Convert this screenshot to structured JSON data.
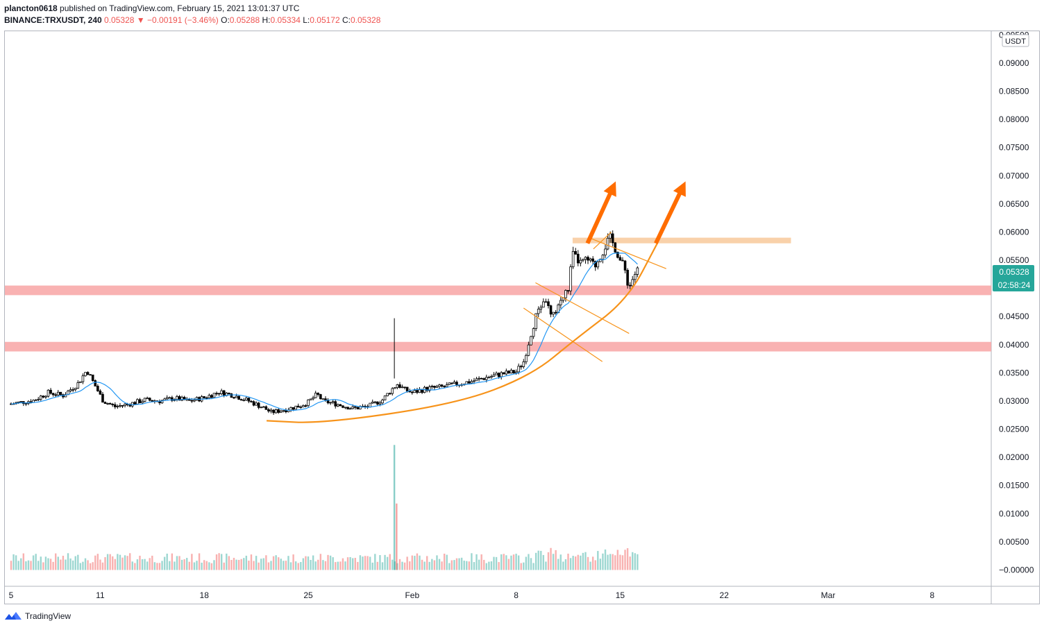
{
  "header": {
    "publisher": "plancton0618",
    "published_text": "published on TradingView.com, February 15, 2021 13:01:37 UTC",
    "symbol": "BINANCE:TRXUSDT, 240",
    "last": "0.05328",
    "arrow": "▼",
    "change": "−0.00191 (−3.46%)",
    "o_label": "O:",
    "o_value": "0.05288",
    "h_label": "H:",
    "h_value": "0.05334",
    "l_label": "L:",
    "l_value": "0.05172",
    "c_label": "C:",
    "c_value": "0.05328"
  },
  "price_axis": {
    "currency": "USDT",
    "current_price": "0.05328",
    "countdown": "02:58:24",
    "top_label_partial": "0.09500"
  },
  "footer": {
    "brand": "TradingView",
    "brand_icon": "tradingview-logo-icon"
  },
  "colors": {
    "up": "#26a69a",
    "down": "#ef5350",
    "candle": "#000000",
    "ma": "#2196f3",
    "drawing": "#f7931a",
    "arrow": "#ff6d00",
    "zone_red": "#f8a5a5",
    "zone_orange": "#f8c99b",
    "badge": "#26a69a"
  },
  "chart_data": {
    "type": "candlestick",
    "symbol": "BINANCE:TRXUSDT",
    "interval": "240",
    "ylim": [
      0,
      0.1
    ],
    "xlim": [
      "2021-01-05",
      "2021-03-11"
    ],
    "y_ticks": [
      "0.09000",
      "0.08500",
      "0.08000",
      "0.07500",
      "0.07000",
      "0.06500",
      "0.06000",
      "0.05500",
      "0.05000",
      "0.04500",
      "0.04000",
      "0.03500",
      "0.03000",
      "0.02500",
      "0.02000",
      "0.01500",
      "0.01000",
      "0.00500",
      "−0.00000"
    ],
    "y_tick_values": [
      0.09,
      0.085,
      0.08,
      0.075,
      0.07,
      0.065,
      0.06,
      0.055,
      0.05,
      0.045,
      0.04,
      0.035,
      0.03,
      0.025,
      0.02,
      0.015,
      0.01,
      0.005,
      0
    ],
    "x_ticks": [
      {
        "label": "5",
        "date": "2021-01-05"
      },
      {
        "label": "11",
        "date": "2021-01-11"
      },
      {
        "label": "18",
        "date": "2021-01-18"
      },
      {
        "label": "25",
        "date": "2021-01-25"
      },
      {
        "label": "Feb",
        "date": "2021-02-01"
      },
      {
        "label": "8",
        "date": "2021-02-08"
      },
      {
        "label": "15",
        "date": "2021-02-15"
      },
      {
        "label": "22",
        "date": "2021-02-22"
      },
      {
        "label": "Mar",
        "date": "2021-03-01"
      },
      {
        "label": "8",
        "date": "2021-03-08"
      }
    ],
    "start_date": "2021-01-05",
    "last_price": 0.05328,
    "close_path": [
      {
        "d": 0,
        "p": 0.0295
      },
      {
        "d": 1.5,
        "p": 0.0301
      },
      {
        "d": 2.5,
        "p": 0.0315
      },
      {
        "d": 3.5,
        "p": 0.031
      },
      {
        "d": 4.5,
        "p": 0.0331
      },
      {
        "d": 5.1,
        "p": 0.0355
      },
      {
        "d": 5.6,
        "p": 0.033
      },
      {
        "d": 6.2,
        "p": 0.03
      },
      {
        "d": 7,
        "p": 0.029
      },
      {
        "d": 8,
        "p": 0.0295
      },
      {
        "d": 9,
        "p": 0.0302
      },
      {
        "d": 10,
        "p": 0.03
      },
      {
        "d": 11,
        "p": 0.0305
      },
      {
        "d": 12,
        "p": 0.03
      },
      {
        "d": 13,
        "p": 0.0306
      },
      {
        "d": 14,
        "p": 0.0316
      },
      {
        "d": 15,
        "p": 0.031
      },
      {
        "d": 16,
        "p": 0.03
      },
      {
        "d": 17,
        "p": 0.0288
      },
      {
        "d": 17.5,
        "p": 0.028
      },
      {
        "d": 18.5,
        "p": 0.0285
      },
      {
        "d": 19.5,
        "p": 0.0292
      },
      {
        "d": 20,
        "p": 0.0298
      },
      {
        "d": 20.6,
        "p": 0.0312
      },
      {
        "d": 21,
        "p": 0.03
      },
      {
        "d": 22,
        "p": 0.0294
      },
      {
        "d": 23,
        "p": 0.0287
      },
      {
        "d": 24,
        "p": 0.029
      },
      {
        "d": 25,
        "p": 0.0302
      },
      {
        "d": 25.6,
        "p": 0.032
      },
      {
        "d": 26,
        "p": 0.033
      },
      {
        "d": 26.5,
        "p": 0.032
      },
      {
        "d": 27,
        "p": 0.0315
      },
      {
        "d": 28,
        "p": 0.0322
      },
      {
        "d": 29,
        "p": 0.0325
      },
      {
        "d": 30,
        "p": 0.033
      },
      {
        "d": 31,
        "p": 0.0335
      },
      {
        "d": 32,
        "p": 0.0342
      },
      {
        "d": 33,
        "p": 0.0348
      },
      {
        "d": 34,
        "p": 0.0352
      },
      {
        "d": 34.5,
        "p": 0.037
      },
      {
        "d": 35,
        "p": 0.042
      },
      {
        "d": 35.5,
        "p": 0.0465
      },
      {
        "d": 36,
        "p": 0.048
      },
      {
        "d": 36.4,
        "p": 0.0445
      },
      {
        "d": 36.8,
        "p": 0.047
      },
      {
        "d": 37.2,
        "p": 0.0485
      },
      {
        "d": 37.5,
        "p": 0.05
      },
      {
        "d": 37.8,
        "p": 0.056
      },
      {
        "d": 38.3,
        "p": 0.0545
      },
      {
        "d": 38.8,
        "p": 0.055
      },
      {
        "d": 39.3,
        "p": 0.054
      },
      {
        "d": 39.6,
        "p": 0.0555
      },
      {
        "d": 40,
        "p": 0.0575
      },
      {
        "d": 40.3,
        "p": 0.059
      },
      {
        "d": 40.7,
        "p": 0.057
      },
      {
        "d": 41,
        "p": 0.055
      },
      {
        "d": 41.3,
        "p": 0.0535
      },
      {
        "d": 41.6,
        "p": 0.05
      },
      {
        "d": 41.9,
        "p": 0.0522
      },
      {
        "d": 42.2,
        "p": 0.05328
      }
    ],
    "volume_spikes": [
      {
        "d": 25.8,
        "v": 0.0222,
        "dir": "up"
      },
      {
        "d": 25.95,
        "v": 0.0118,
        "dir": "down"
      }
    ],
    "indicator": {
      "name": "moving average",
      "color": "#2196f3"
    },
    "drawings": {
      "support_zones": [
        [
          0.0488,
          0.0505
        ],
        [
          0.0388,
          0.0405
        ]
      ],
      "resistance_zone": {
        "y": [
          0.058,
          0.059
        ],
        "d": [
          37.8,
          52.5
        ]
      },
      "parabolic_curve": [
        {
          "d": 17.2,
          "p": 0.0265
        },
        {
          "d": 21,
          "p": 0.026
        },
        {
          "d": 30,
          "p": 0.0295
        },
        {
          "d": 35,
          "p": 0.0345
        },
        {
          "d": 38,
          "p": 0.041
        },
        {
          "d": 41.5,
          "p": 0.048
        },
        {
          "d": 43.5,
          "p": 0.058
        }
      ],
      "channel_lines": [
        [
          {
            "d": 34.5,
            "p": 0.0465
          },
          {
            "d": 39.8,
            "p": 0.037
          }
        ],
        [
          {
            "d": 35.3,
            "p": 0.051
          },
          {
            "d": 41.6,
            "p": 0.042
          }
        ],
        [
          {
            "d": 38.9,
            "p": 0.059
          },
          {
            "d": 44.1,
            "p": 0.0535
          }
        ],
        [
          {
            "d": 39.2,
            "p": 0.057
          },
          {
            "d": 40.4,
            "p": 0.06
          }
        ]
      ],
      "arrows": [
        {
          "from": {
            "d": 38.8,
            "p": 0.058
          },
          "to": {
            "d": 40.7,
            "p": 0.069
          }
        },
        {
          "from": {
            "d": 43.4,
            "p": 0.058
          },
          "to": {
            "d": 45.4,
            "p": 0.069
          }
        }
      ]
    }
  }
}
